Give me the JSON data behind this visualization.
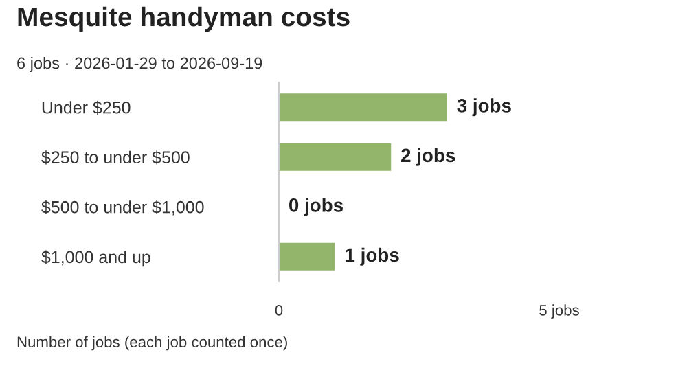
{
  "chart_data": {
    "type": "bar",
    "orientation": "horizontal",
    "title": "Mesquite handyman costs",
    "subtitle": "6 jobs · 2026-01-29 to 2026-09-19",
    "categories": [
      "Under $250",
      "$250 to under $500",
      "$500 to under $1,000",
      "$1,000 and up"
    ],
    "values": [
      3,
      2,
      0,
      1
    ],
    "value_labels": [
      "3 jobs",
      "2 jobs",
      "0 jobs",
      "1 jobs"
    ],
    "color": "#93b56b",
    "xlim": [
      0,
      5
    ],
    "xticks": [
      0,
      {
        "value": 5,
        "label": "5 jobs"
      }
    ],
    "grid": false,
    "legend": false,
    "annotations": [
      "Number of jobs (each job counted once)"
    ]
  }
}
